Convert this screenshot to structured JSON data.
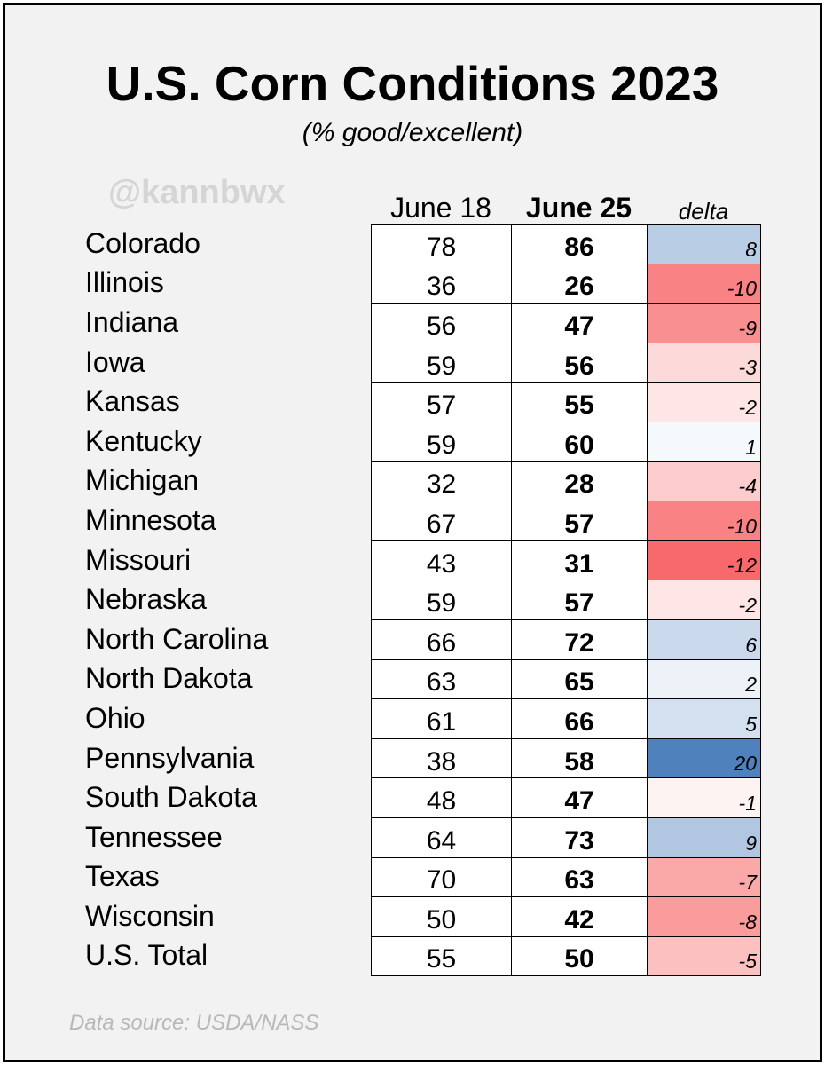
{
  "chart_data": {
    "type": "table",
    "title": "U.S. Corn Conditions 2023",
    "subtitle": "(% good/excellent)",
    "watermark": "@kannbwx",
    "source": "Data source: USDA/NASS",
    "columns": [
      "June 18",
      "June 25",
      "delta"
    ],
    "colors": {
      "positive": "#4f81bd",
      "negative": "#f8696b",
      "neutral": "#ffffff"
    },
    "rows": [
      {
        "state": "Colorado",
        "june18": 78,
        "june25": 86,
        "delta": 8
      },
      {
        "state": "Illinois",
        "june18": 36,
        "june25": 26,
        "delta": -10
      },
      {
        "state": "Indiana",
        "june18": 56,
        "june25": 47,
        "delta": -9
      },
      {
        "state": "Iowa",
        "june18": 59,
        "june25": 56,
        "delta": -3
      },
      {
        "state": "Kansas",
        "june18": 57,
        "june25": 55,
        "delta": -2
      },
      {
        "state": "Kentucky",
        "june18": 59,
        "june25": 60,
        "delta": 1
      },
      {
        "state": "Michigan",
        "june18": 32,
        "june25": 28,
        "delta": -4
      },
      {
        "state": "Minnesota",
        "june18": 67,
        "june25": 57,
        "delta": -10
      },
      {
        "state": "Missouri",
        "june18": 43,
        "june25": 31,
        "delta": -12
      },
      {
        "state": "Nebraska",
        "june18": 59,
        "june25": 57,
        "delta": -2
      },
      {
        "state": "North Carolina",
        "june18": 66,
        "june25": 72,
        "delta": 6
      },
      {
        "state": "North Dakota",
        "june18": 63,
        "june25": 65,
        "delta": 2
      },
      {
        "state": "Ohio",
        "june18": 61,
        "june25": 66,
        "delta": 5
      },
      {
        "state": "Pennsylvania",
        "june18": 38,
        "june25": 58,
        "delta": 20
      },
      {
        "state": "South Dakota",
        "june18": 48,
        "june25": 47,
        "delta": -1
      },
      {
        "state": "Tennessee",
        "june18": 64,
        "june25": 73,
        "delta": 9
      },
      {
        "state": "Texas",
        "june18": 70,
        "june25": 63,
        "delta": -7
      },
      {
        "state": "Wisconsin",
        "june18": 50,
        "june25": 42,
        "delta": -8
      },
      {
        "state": "U.S. Total",
        "june18": 55,
        "june25": 50,
        "delta": -5
      }
    ]
  }
}
